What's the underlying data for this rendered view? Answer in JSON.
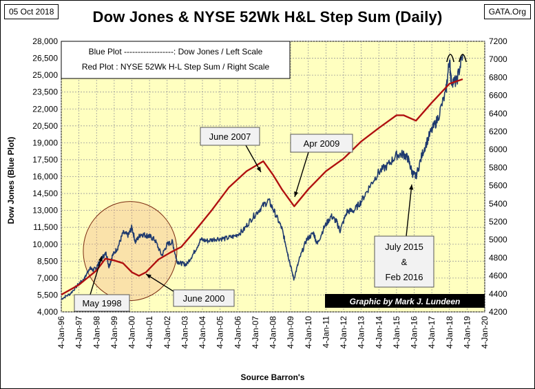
{
  "header": {
    "date": "05 Oct 2018",
    "source_tag": "GATA.Org",
    "title": "Dow Jones & NYSE 52Wk H&L Step Sum (Daily)"
  },
  "legend": {
    "line1": "Blue Plot ------------------:  Dow Jones / Left Scale",
    "line2": "Red Plot : NYSE 52Wk H-L Step Sum / Right Scale"
  },
  "credit": "Graphic by Mark J. Lundeen",
  "source_note": "Source Barron's",
  "colors": {
    "plot_bg": "#ffffc0",
    "dow": "#1f3a6e",
    "nyse": "#b01010",
    "grid": "#888888"
  },
  "chart_data": {
    "type": "line",
    "ylabel_left": "Dow Jones    (Blue Plot)",
    "xlabel": "Source Barron's",
    "y_left_range": [
      4000,
      28000
    ],
    "y_right_range": [
      4200,
      7200
    ],
    "y_left_ticks": [
      "4,000",
      "5,500",
      "7,000",
      "8,500",
      "10,000",
      "11,500",
      "13,000",
      "14,500",
      "16,000",
      "17,500",
      "19,000",
      "20,500",
      "22,000",
      "23,500",
      "25,000",
      "26,500",
      "28,000"
    ],
    "y_right_ticks": [
      "4200",
      "4400",
      "4600",
      "4800",
      "5000",
      "5200",
      "5400",
      "5600",
      "5800",
      "6000",
      "6200",
      "6400",
      "6600",
      "6800",
      "7000",
      "7200"
    ],
    "x_ticks": [
      "4-Jan-96",
      "4-Jan-97",
      "4-Jan-98",
      "4-Jan-99",
      "4-Jan-00",
      "4-Jan-01",
      "4-Jan-02",
      "4-Jan-03",
      "4-Jan-04",
      "4-Jan-05",
      "4-Jan-06",
      "4-Jan-07",
      "4-Jan-08",
      "4-Jan-09",
      "4-Jan-10",
      "4-Jan-11",
      "4-Jan-12",
      "4-Jan-13",
      "4-Jan-14",
      "4-Jan-15",
      "4-Jan-16",
      "4-Jan-17",
      "4-Jan-18",
      "4-Jan-19",
      "4-Jan-20"
    ],
    "grid": true,
    "series": [
      {
        "name": "Dow Jones",
        "axis": "left",
        "x": [
          1996.0,
          1996.5,
          1997.0,
          1997.3,
          1997.6,
          1997.8,
          1998.0,
          1998.3,
          1998.55,
          1998.7,
          1998.9,
          1999.2,
          1999.5,
          1999.8,
          2000.0,
          2000.2,
          2000.5,
          2000.8,
          2001.0,
          2001.3,
          2001.7,
          2002.0,
          2002.3,
          2002.55,
          2002.8,
          2003.1,
          2003.5,
          2003.9,
          2004.3,
          2004.8,
          2005.3,
          2005.8,
          2006.3,
          2006.8,
          2007.3,
          2007.75,
          2008.1,
          2008.5,
          2008.75,
          2008.9,
          2009.18,
          2009.5,
          2009.9,
          2010.3,
          2010.5,
          2010.9,
          2011.3,
          2011.6,
          2011.8,
          2012.2,
          2012.6,
          2013.0,
          2013.5,
          2014.0,
          2014.5,
          2015.0,
          2015.4,
          2015.65,
          2015.9,
          2016.1,
          2016.5,
          2016.9,
          2017.3,
          2017.8,
          2018.0,
          2018.1,
          2018.4,
          2018.75
        ],
        "values": [
          5150,
          5600,
          6500,
          6900,
          7900,
          7700,
          7950,
          8800,
          9200,
          8000,
          9000,
          9700,
          11000,
          10800,
          11500,
          10200,
          10900,
          10800,
          10700,
          10400,
          9000,
          10000,
          10200,
          8500,
          8300,
          8200,
          9200,
          10400,
          10300,
          10500,
          10500,
          10700,
          11200,
          12300,
          13200,
          13900,
          12800,
          11400,
          9800,
          8700,
          6900,
          8700,
          10400,
          11000,
          10000,
          11500,
          12500,
          12000,
          11200,
          12900,
          13000,
          13800,
          15200,
          16400,
          17000,
          17900,
          18000,
          17600,
          16300,
          16000,
          18200,
          19800,
          21000,
          23500,
          26400,
          24500,
          24400,
          26800
        ]
      },
      {
        "name": "NYSE 52Wk H-L Step Sum",
        "axis": "right",
        "x": [
          1996.0,
          1997.0,
          1998.0,
          1998.5,
          1999.0,
          1999.5,
          2000.0,
          2000.4,
          2000.8,
          2001.5,
          2002.2,
          2002.8,
          2003.5,
          2004.5,
          2005.5,
          2006.5,
          2007.45,
          2008.0,
          2008.5,
          2009.2,
          2010.0,
          2011.0,
          2012.0,
          2013.0,
          2014.0,
          2015.0,
          2015.4,
          2016.1,
          2017.0,
          2018.0,
          2018.75
        ],
        "values": [
          4390,
          4500,
          4660,
          4790,
          4770,
          4740,
          4640,
          4600,
          4640,
          4780,
          4860,
          4920,
          5080,
          5320,
          5580,
          5760,
          5870,
          5720,
          5560,
          5370,
          5560,
          5760,
          5900,
          6090,
          6240,
          6380,
          6380,
          6320,
          6520,
          6730,
          6780
        ]
      }
    ],
    "annotations": [
      "June 2007",
      "Apr 2009",
      "May 1998",
      "June 2000",
      "July 2015\n&\nFeb 2016"
    ]
  }
}
